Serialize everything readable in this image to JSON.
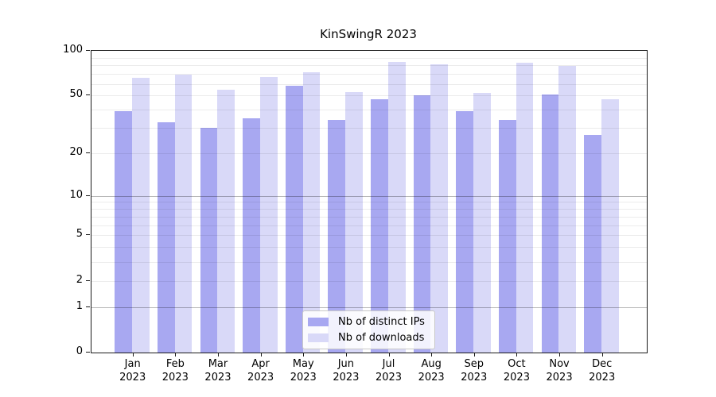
{
  "chart_data": {
    "type": "bar",
    "title": "KinSwingR 2023",
    "scale": "log1p",
    "ylim": [
      0,
      100
    ],
    "grid": true,
    "legend_position": "lower center",
    "categories": [
      "Jan",
      "Feb",
      "Mar",
      "Apr",
      "May",
      "Jun",
      "Jul",
      "Aug",
      "Sep",
      "Oct",
      "Nov",
      "Dec"
    ],
    "year": "2023",
    "y_ticks": [
      0,
      1,
      2,
      5,
      10,
      20,
      50,
      100
    ],
    "major_gridlines": [
      1,
      10
    ],
    "minor_gridlines": [
      2,
      3,
      4,
      5,
      6,
      7,
      8,
      9,
      20,
      30,
      40,
      50,
      60,
      70,
      80,
      90
    ],
    "series": [
      {
        "name": "Nb of distinct IPs",
        "color": "#a8a8f1",
        "values": [
          39,
          33,
          30,
          35,
          58,
          34,
          47,
          50,
          39,
          34,
          51,
          27
        ]
      },
      {
        "name": "Nb of downloads",
        "color": "#d9d9f8",
        "values": [
          66,
          69,
          55,
          67,
          72,
          53,
          84,
          81,
          52,
          83,
          79,
          47
        ]
      }
    ]
  }
}
